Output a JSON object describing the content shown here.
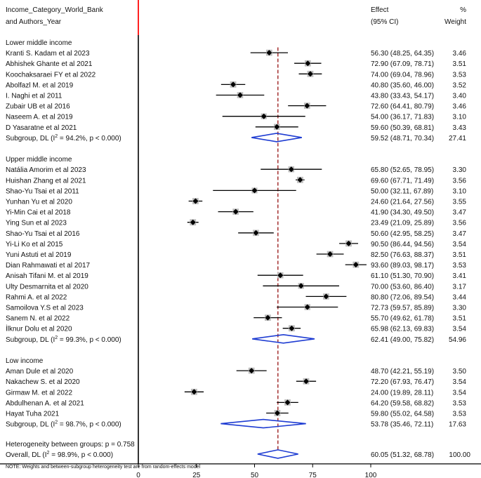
{
  "chart_data": {
    "type": "forest",
    "header": {
      "left_line1": "Income_Category_World_Bank",
      "left_line2": "and Authors_Year",
      "effect_line1": "Effect",
      "effect_line2": "(95% CI)",
      "weight_line1": "%",
      "weight_line2": "Weight"
    },
    "groups": [
      {
        "name": "Lower middle income",
        "studies": [
          {
            "label": "Kranti S. Kadam et al  2023",
            "est": 56.3,
            "lo": 48.25,
            "hi": 64.35,
            "text": "56.30 (48.25, 64.35)",
            "weight": "3.46"
          },
          {
            "label": "Abhishek Ghante et al 2021",
            "est": 72.9,
            "lo": 67.09,
            "hi": 78.71,
            "text": "72.90 (67.09, 78.71)",
            "weight": "3.51"
          },
          {
            "label": "Koochaksaraei FY et al 2022",
            "est": 74.0,
            "lo": 69.04,
            "hi": 78.96,
            "text": "74.00 (69.04, 78.96)",
            "weight": "3.53"
          },
          {
            "label": "Abolfazl M. et al 2019",
            "est": 40.8,
            "lo": 35.6,
            "hi": 46.0,
            "text": "40.80 (35.60, 46.00)",
            "weight": "3.52"
          },
          {
            "label": "I. Naghi et al  2011",
            "est": 43.8,
            "lo": 33.43,
            "hi": 54.17,
            "text": "43.80 (33.43, 54.17)",
            "weight": "3.40"
          },
          {
            "label": "Zubair UB et al 2016",
            "est": 72.6,
            "lo": 64.41,
            "hi": 80.79,
            "text": "72.60 (64.41, 80.79)",
            "weight": "3.46"
          },
          {
            "label": "Naseem A. et al 2019",
            "est": 54.0,
            "lo": 36.17,
            "hi": 71.83,
            "text": "54.00 (36.17, 71.83)",
            "weight": "3.10"
          },
          {
            "label": "D Yasaratne et al  2021",
            "est": 59.6,
            "lo": 50.39,
            "hi": 68.81,
            "text": "59.60 (50.39, 68.81)",
            "weight": "3.43"
          }
        ],
        "subgroup": {
          "label_pre": "Subgroup, DL (I",
          "label_post": " = 94.2%, p < 0.000)",
          "est": 59.52,
          "lo": 48.71,
          "hi": 70.34,
          "text": "59.52 (48.71, 70.34)",
          "weight": "27.41"
        }
      },
      {
        "name": "Upper middle income",
        "studies": [
          {
            "label": "Natália Amorim et al  2023",
            "est": 65.8,
            "lo": 52.65,
            "hi": 78.95,
            "text": "65.80 (52.65, 78.95)",
            "weight": "3.30"
          },
          {
            "label": "Huishan Zhang et al  2021",
            "est": 69.6,
            "lo": 67.71,
            "hi": 71.49,
            "text": "69.60 (67.71, 71.49)",
            "weight": "3.56"
          },
          {
            "label": "Shao-Yu Tsai et al 2011",
            "est": 50.0,
            "lo": 32.11,
            "hi": 67.89,
            "text": "50.00 (32.11, 67.89)",
            "weight": "3.10"
          },
          {
            "label": "Yunhan Yu et al  2020",
            "est": 24.6,
            "lo": 21.64,
            "hi": 27.56,
            "text": "24.60 (21.64, 27.56)",
            "weight": "3.55"
          },
          {
            "label": "Yi-Min Cai et al 2018",
            "est": 41.9,
            "lo": 34.3,
            "hi": 49.5,
            "text": "41.90 (34.30, 49.50)",
            "weight": "3.47"
          },
          {
            "label": "Ying Sun et al  2023",
            "est": 23.49,
            "lo": 21.09,
            "hi": 25.89,
            "text": "23.49 (21.09, 25.89)",
            "weight": "3.56"
          },
          {
            "label": "Shao-Yu Tsai et al 2016",
            "est": 50.6,
            "lo": 42.95,
            "hi": 58.25,
            "text": "50.60 (42.95, 58.25)",
            "weight": "3.47"
          },
          {
            "label": "Yi-Li Ko et al  2015",
            "est": 90.5,
            "lo": 86.44,
            "hi": 94.56,
            "text": "90.50 (86.44, 94.56)",
            "weight": "3.54"
          },
          {
            "label": "Yuni Astuti et al 2019",
            "est": 82.5,
            "lo": 76.63,
            "hi": 88.37,
            "text": "82.50 (76.63, 88.37)",
            "weight": "3.51"
          },
          {
            "label": "Dian Rahmawati et al 2017",
            "est": 93.6,
            "lo": 89.03,
            "hi": 98.17,
            "text": "93.60 (89.03, 98.17)",
            "weight": "3.53"
          },
          {
            "label": "Anisah Tifani M. et al 2019",
            "est": 61.1,
            "lo": 51.3,
            "hi": 70.9,
            "text": "61.10 (51.30, 70.90)",
            "weight": "3.41"
          },
          {
            "label": "Ulty Desmarnita et al 2020",
            "est": 70.0,
            "lo": 53.6,
            "hi": 86.4,
            "text": "70.00 (53.60, 86.40)",
            "weight": "3.17"
          },
          {
            "label": "Rahmi A. et al 2022",
            "est": 80.8,
            "lo": 72.06,
            "hi": 89.54,
            "text": "80.80 (72.06, 89.54)",
            "weight": "3.44"
          },
          {
            "label": "Samoilova Y.S et al  2023",
            "est": 72.73,
            "lo": 59.57,
            "hi": 85.89,
            "text": "72.73 (59.57, 85.89)",
            "weight": "3.30"
          },
          {
            "label": "Sanem N. et al  2022",
            "est": 55.7,
            "lo": 49.62,
            "hi": 61.78,
            "text": "55.70 (49.62, 61.78)",
            "weight": "3.51"
          },
          {
            "label": "İlknur Dolu et al  2020",
            "est": 65.98,
            "lo": 62.13,
            "hi": 69.83,
            "text": "65.98 (62.13, 69.83)",
            "weight": "3.54"
          }
        ],
        "subgroup": {
          "label_pre": "Subgroup, DL (I",
          "label_post": " = 99.3%, p < 0.000)",
          "est": 62.41,
          "lo": 49.0,
          "hi": 75.82,
          "text": "62.41 (49.00, 75.82)",
          "weight": "54.96"
        }
      },
      {
        "name": "Low income",
        "studies": [
          {
            "label": "Aman Dule et al 2020",
            "est": 48.7,
            "lo": 42.21,
            "hi": 55.19,
            "text": "48.70 (42.21, 55.19)",
            "weight": "3.50"
          },
          {
            "label": "Nakachew S. et al 2020",
            "est": 72.2,
            "lo": 67.93,
            "hi": 76.47,
            "text": "72.20 (67.93, 76.47)",
            "weight": "3.54"
          },
          {
            "label": "Girmaw M. et al  2022",
            "est": 24.0,
            "lo": 19.89,
            "hi": 28.11,
            "text": "24.00 (19.89, 28.11)",
            "weight": "3.54"
          },
          {
            "label": "Abdulhenan A. et al  2021",
            "est": 64.2,
            "lo": 59.58,
            "hi": 68.82,
            "text": "64.20 (59.58, 68.82)",
            "weight": "3.53"
          },
          {
            "label": "Hayat Tuha  2021",
            "est": 59.8,
            "lo": 55.02,
            "hi": 64.58,
            "text": "59.80 (55.02, 64.58)",
            "weight": "3.53"
          }
        ],
        "subgroup": {
          "label_pre": "Subgroup, DL (I",
          "label_post": " = 98.7%, p < 0.000)",
          "est": 53.78,
          "lo": 35.46,
          "hi": 72.11,
          "text": "53.78 (35.46, 72.11)",
          "weight": "17.63"
        }
      }
    ],
    "heterogeneity_text": "Heterogeneity between groups: p = 0.758",
    "overall": {
      "label_pre": "Overall, DL (I",
      "label_post": " = 98.9%, p < 0.000)",
      "est": 60.05,
      "lo": 51.32,
      "hi": 68.78,
      "text": "60.05 (51.32, 68.78)",
      "weight": "100.00"
    },
    "superscript": "2",
    "xaxis": {
      "ticks": [
        0,
        25,
        50,
        75,
        100
      ],
      "range": [
        0,
        100
      ]
    },
    "footnote": "NOTE: Weights and between-subgroup heterogeneity test are from random-effects model",
    "colors": {
      "diamond": "#1e3cd2",
      "overall_line": "#a83a3a",
      "null_line": "#ff2020",
      "marker": "#000000",
      "box": "#bdbdbd"
    }
  }
}
